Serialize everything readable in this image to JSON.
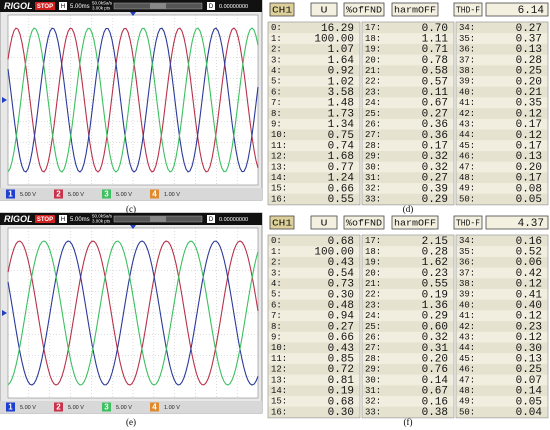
{
  "scopes": [
    {
      "brand": "RIGOL",
      "status": "STOP",
      "timebase_label": "H",
      "timebase": "5.00ms",
      "sample_rate": "50.0kSa/s",
      "points": "3.00k pts",
      "trigger_label": "D",
      "trigger": "0.00000000",
      "channels": [
        {
          "num": "1",
          "scale": "5.00 V"
        },
        {
          "num": "2",
          "scale": "5.00 V"
        },
        {
          "num": "3",
          "scale": "5.00 V"
        },
        {
          "num": "4",
          "scale": "1.00 V"
        }
      ],
      "caption": "(c)"
    },
    {
      "brand": "RIGOL",
      "status": "STOP",
      "timebase_label": "H",
      "timebase": "5.00ms",
      "sample_rate": "50.0kSa/s",
      "points": "3.00k pts",
      "trigger_label": "D",
      "trigger": "0.00000000",
      "channels": [
        {
          "num": "1",
          "scale": "5.00 V"
        },
        {
          "num": "2",
          "scale": "5.00 V"
        },
        {
          "num": "3",
          "scale": "5.00 V"
        },
        {
          "num": "4",
          "scale": "1.00 V"
        }
      ],
      "caption": "(e)"
    }
  ],
  "tables": [
    {
      "fields": [
        "CH1",
        "U",
        "%ofFND",
        "harmOFF",
        "THD-F"
      ],
      "thd": "6.14",
      "caption": "(d)",
      "columns": [
        [
          [
            "0:",
            "16.29"
          ],
          [
            "1:",
            "100.00"
          ],
          [
            "2:",
            "1.07"
          ],
          [
            "3:",
            "1.64"
          ],
          [
            "4:",
            "0.92"
          ],
          [
            "5:",
            "1.02"
          ],
          [
            "6:",
            "3.58"
          ],
          [
            "7:",
            "1.48"
          ],
          [
            "8:",
            "1.73"
          ],
          [
            "9:",
            "1.34"
          ],
          [
            "10:",
            "0.75"
          ],
          [
            "11:",
            "0.74"
          ],
          [
            "12:",
            "1.68"
          ],
          [
            "13:",
            "0.77"
          ],
          [
            "14:",
            "1.24"
          ],
          [
            "15:",
            "0.66"
          ],
          [
            "16:",
            "0.55"
          ]
        ],
        [
          [
            "17:",
            "0.70"
          ],
          [
            "18:",
            "1.11"
          ],
          [
            "19:",
            "0.71"
          ],
          [
            "20:",
            "0.78"
          ],
          [
            "21:",
            "0.58"
          ],
          [
            "22:",
            "0.57"
          ],
          [
            "23:",
            "0.11"
          ],
          [
            "24:",
            "0.67"
          ],
          [
            "25:",
            "0.27"
          ],
          [
            "26:",
            "0.36"
          ],
          [
            "27:",
            "0.36"
          ],
          [
            "28:",
            "0.17"
          ],
          [
            "29:",
            "0.32"
          ],
          [
            "30:",
            "0.32"
          ],
          [
            "31:",
            "0.27"
          ],
          [
            "32:",
            "0.39"
          ],
          [
            "33:",
            "0.29"
          ]
        ],
        [
          [
            "34:",
            "0.27"
          ],
          [
            "35:",
            "0.37"
          ],
          [
            "36:",
            "0.13"
          ],
          [
            "37:",
            "0.28"
          ],
          [
            "38:",
            "0.25"
          ],
          [
            "39:",
            "0.20"
          ],
          [
            "40:",
            "0.21"
          ],
          [
            "41:",
            "0.35"
          ],
          [
            "42:",
            "0.12"
          ],
          [
            "43:",
            "0.17"
          ],
          [
            "44:",
            "0.12"
          ],
          [
            "45:",
            "0.17"
          ],
          [
            "46:",
            "0.13"
          ],
          [
            "47:",
            "0.20"
          ],
          [
            "48:",
            "0.17"
          ],
          [
            "49:",
            "0.08"
          ],
          [
            "50:",
            "0.05"
          ]
        ]
      ]
    },
    {
      "fields": [
        "CH1",
        "U",
        "%ofFND",
        "harmOFF",
        "THD-F"
      ],
      "thd": "4.37",
      "caption": "(f)",
      "columns": [
        [
          [
            "0:",
            "0.68"
          ],
          [
            "1:",
            "100.00"
          ],
          [
            "2:",
            "0.43"
          ],
          [
            "3:",
            "0.54"
          ],
          [
            "4:",
            "0.73"
          ],
          [
            "5:",
            "0.30"
          ],
          [
            "6:",
            "0.48"
          ],
          [
            "7:",
            "0.94"
          ],
          [
            "8:",
            "0.27"
          ],
          [
            "9:",
            "0.66"
          ],
          [
            "10:",
            "0.43"
          ],
          [
            "11:",
            "0.85"
          ],
          [
            "12:",
            "0.72"
          ],
          [
            "13:",
            "0.81"
          ],
          [
            "14:",
            "0.19"
          ],
          [
            "15:",
            "0.68"
          ],
          [
            "16:",
            "0.30"
          ]
        ],
        [
          [
            "17:",
            "2.15"
          ],
          [
            "18:",
            "0.28"
          ],
          [
            "19:",
            "1.62"
          ],
          [
            "20:",
            "0.23"
          ],
          [
            "21:",
            "0.55"
          ],
          [
            "22:",
            "0.19"
          ],
          [
            "23:",
            "1.36"
          ],
          [
            "24:",
            "0.29"
          ],
          [
            "25:",
            "0.60"
          ],
          [
            "26:",
            "0.32"
          ],
          [
            "27:",
            "0.31"
          ],
          [
            "28:",
            "0.20"
          ],
          [
            "29:",
            "0.76"
          ],
          [
            "30:",
            "0.14"
          ],
          [
            "31:",
            "0.67"
          ],
          [
            "32:",
            "0.16"
          ],
          [
            "33:",
            "0.38"
          ]
        ],
        [
          [
            "34:",
            "0.16"
          ],
          [
            "35:",
            "0.52"
          ],
          [
            "36:",
            "0.06"
          ],
          [
            "37:",
            "0.42"
          ],
          [
            "38:",
            "0.12"
          ],
          [
            "39:",
            "0.41"
          ],
          [
            "40:",
            "0.40"
          ],
          [
            "41:",
            "0.12"
          ],
          [
            "42:",
            "0.23"
          ],
          [
            "43:",
            "0.12"
          ],
          [
            "44:",
            "0.30"
          ],
          [
            "45:",
            "0.13"
          ],
          [
            "46:",
            "0.25"
          ],
          [
            "47:",
            "0.07"
          ],
          [
            "48:",
            "0.14"
          ],
          [
            "49:",
            "0.05"
          ],
          [
            "50:",
            "0.04"
          ]
        ]
      ]
    }
  ]
}
